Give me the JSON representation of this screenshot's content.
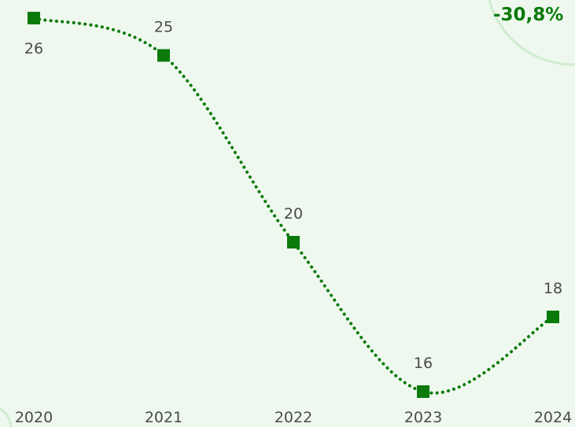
{
  "chart_data": {
    "type": "line",
    "categories": [
      "2020",
      "2021",
      "2022",
      "2023",
      "2024"
    ],
    "values": [
      26,
      25,
      20,
      16,
      18
    ],
    "data_labels": [
      "26",
      "25",
      "20",
      "16",
      "18"
    ],
    "badge": "-30,8%",
    "title": "",
    "xlabel": "",
    "ylabel": "",
    "ylim": [
      16,
      26
    ],
    "grid": false,
    "legend": "none",
    "colors": {
      "line": "#0a7a0a",
      "marker": "#0a7a0a",
      "label": "#4a4a4a",
      "background": "#eef8ee",
      "accent_arc": "#cfeccf"
    }
  }
}
